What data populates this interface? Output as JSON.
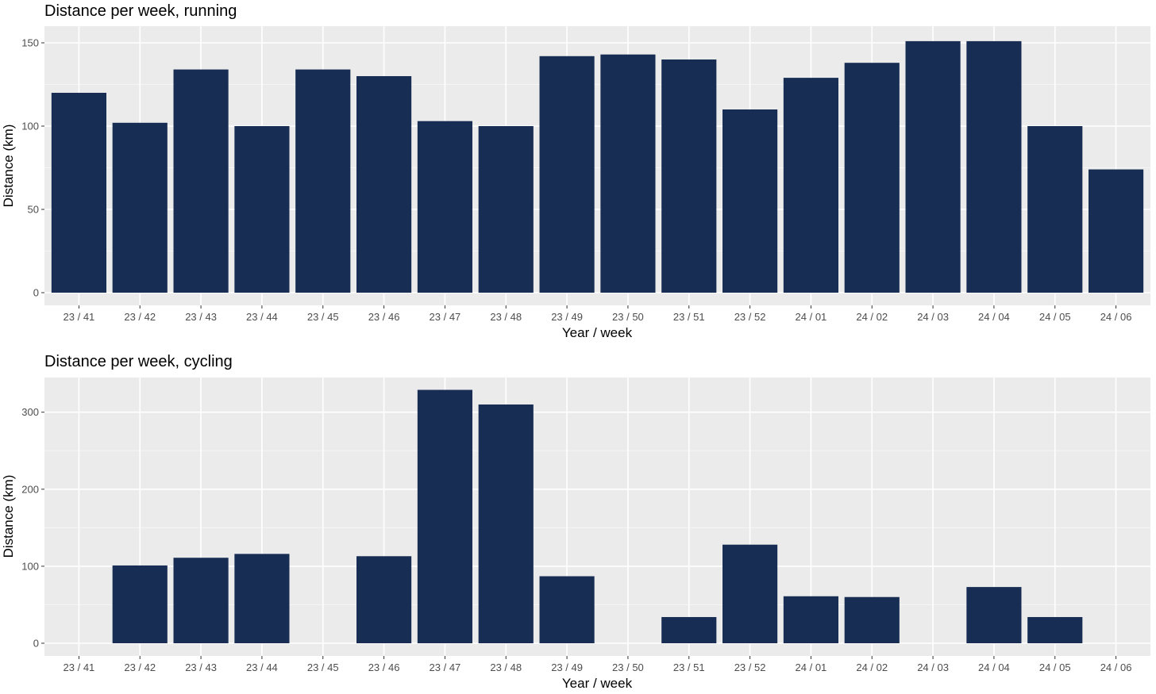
{
  "colors": {
    "bar": "#172d53",
    "panel_background": "#ebebeb",
    "grid_major": "#ffffff",
    "grid_minor": "#f5f5f5",
    "tick_text": "#4d4d4d"
  },
  "chart_data": [
    {
      "type": "bar",
      "title": "Distance per week, running",
      "xlabel": "Year / week",
      "ylabel": "Distance (km)",
      "ylim": [
        0,
        160
      ],
      "yticks": [
        0,
        50,
        100,
        150
      ],
      "grid": true,
      "categories": [
        "23 / 41",
        "23 / 42",
        "23 / 43",
        "23 / 44",
        "23 / 45",
        "23 / 46",
        "23 / 47",
        "23 / 48",
        "23 / 49",
        "23 / 50",
        "23 / 51",
        "23 / 52",
        "24 / 01",
        "24 / 02",
        "24 / 03",
        "24 / 04",
        "24 / 05",
        "24 / 06"
      ],
      "values": [
        120,
        102,
        134,
        100,
        134,
        130,
        103,
        100,
        142,
        143,
        140,
        110,
        129,
        138,
        151,
        151,
        100,
        74
      ]
    },
    {
      "type": "bar",
      "title": "Distance per week, cycling",
      "xlabel": "Year / week",
      "ylabel": "Distance (km)",
      "ylim": [
        0,
        345
      ],
      "yticks": [
        0,
        100,
        200,
        300
      ],
      "grid": true,
      "categories": [
        "23 / 41",
        "23 / 42",
        "23 / 43",
        "23 / 44",
        "23 / 45",
        "23 / 46",
        "23 / 47",
        "23 / 48",
        "23 / 49",
        "23 / 50",
        "23 / 51",
        "23 / 52",
        "24 / 01",
        "24 / 02",
        "24 / 03",
        "24 / 04",
        "24 / 05",
        "24 / 06"
      ],
      "values": [
        0,
        101,
        111,
        116,
        0,
        113,
        329,
        310,
        87,
        0,
        34,
        128,
        61,
        60,
        0,
        73,
        34,
        0
      ]
    }
  ]
}
